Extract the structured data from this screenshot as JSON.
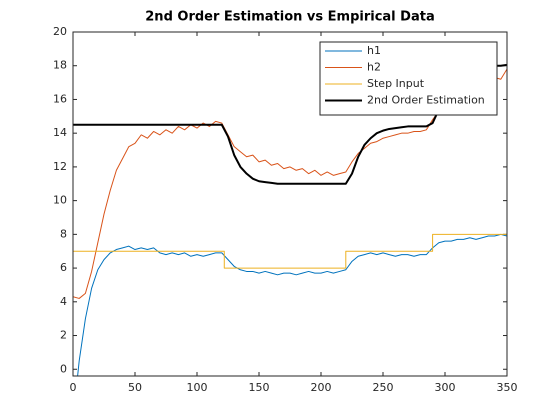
{
  "chart_data": {
    "type": "line",
    "title": "2nd Order Estimation vs Empirical Data",
    "xlim": [
      0,
      350
    ],
    "ylim": [
      -0.4,
      20
    ],
    "xticks": [
      0,
      50,
      100,
      150,
      200,
      250,
      300,
      350
    ],
    "yticks": [
      0,
      2,
      4,
      6,
      8,
      10,
      12,
      14,
      16,
      18,
      20
    ],
    "legend": "upper right",
    "x": [
      0,
      5,
      10,
      15,
      20,
      25,
      30,
      35,
      40,
      45,
      50,
      55,
      60,
      65,
      70,
      75,
      80,
      85,
      90,
      95,
      100,
      105,
      110,
      115,
      120,
      125,
      130,
      135,
      140,
      145,
      150,
      155,
      160,
      165,
      170,
      175,
      180,
      185,
      190,
      195,
      200,
      205,
      210,
      215,
      220,
      225,
      230,
      235,
      240,
      245,
      250,
      255,
      260,
      265,
      270,
      275,
      280,
      285,
      290,
      295,
      300,
      305,
      310,
      315,
      320,
      325,
      330,
      335,
      340,
      345,
      350
    ],
    "series": [
      {
        "name": "h1",
        "color": "#0072bd",
        "width": 1,
        "values": [
          -3,
          0.5,
          3,
          4.8,
          5.9,
          6.5,
          6.9,
          7.1,
          7.2,
          7.3,
          7.1,
          7.2,
          7.1,
          7.2,
          6.9,
          6.8,
          6.9,
          6.8,
          6.9,
          6.7,
          6.8,
          6.7,
          6.8,
          6.9,
          6.9,
          6.5,
          6.1,
          5.9,
          5.8,
          5.8,
          5.7,
          5.8,
          5.7,
          5.6,
          5.7,
          5.7,
          5.6,
          5.7,
          5.8,
          5.7,
          5.7,
          5.8,
          5.7,
          5.8,
          5.9,
          6.4,
          6.7,
          6.8,
          6.9,
          6.8,
          6.9,
          6.8,
          6.7,
          6.8,
          6.8,
          6.7,
          6.8,
          6.8,
          7.2,
          7.5,
          7.6,
          7.6,
          7.7,
          7.7,
          7.8,
          7.7,
          7.8,
          7.9,
          7.9,
          8.0,
          7.9
        ]
      },
      {
        "name": "h2",
        "color": "#d95319",
        "width": 1,
        "values": [
          4.3,
          4.2,
          4.5,
          5.8,
          7.5,
          9.2,
          10.6,
          11.8,
          12.5,
          13.2,
          13.4,
          13.9,
          13.7,
          14.1,
          13.9,
          14.2,
          14.0,
          14.4,
          14.2,
          14.5,
          14.3,
          14.6,
          14.4,
          14.7,
          14.6,
          13.9,
          13.2,
          12.9,
          12.6,
          12.7,
          12.3,
          12.4,
          12.1,
          12.2,
          11.9,
          12.0,
          11.8,
          11.9,
          11.6,
          11.8,
          11.5,
          11.7,
          11.5,
          11.6,
          11.7,
          12.3,
          12.8,
          13.1,
          13.4,
          13.5,
          13.7,
          13.8,
          13.9,
          14.0,
          14.0,
          14.1,
          14.1,
          14.2,
          14.8,
          15.3,
          15.8,
          16.1,
          16.4,
          16.6,
          16.8,
          17.0,
          17.1,
          17.2,
          17.3,
          17.2,
          17.8
        ]
      },
      {
        "name": "Step Input",
        "color": "#edb120",
        "width": 1,
        "x": [
          0,
          122,
          122,
          220,
          220,
          290,
          290,
          350
        ],
        "values": [
          7,
          7,
          6,
          6,
          7,
          7,
          8,
          8
        ]
      },
      {
        "name": "2nd Order Estimation",
        "color": "#000000",
        "width": 2,
        "values": [
          14.5,
          14.5,
          14.5,
          14.5,
          14.5,
          14.5,
          14.5,
          14.5,
          14.5,
          14.5,
          14.5,
          14.5,
          14.5,
          14.5,
          14.5,
          14.5,
          14.5,
          14.5,
          14.5,
          14.5,
          14.5,
          14.5,
          14.5,
          14.5,
          14.5,
          13.8,
          12.7,
          12.0,
          11.6,
          11.3,
          11.15,
          11.1,
          11.05,
          11.0,
          11.0,
          11.0,
          11.0,
          11.0,
          11.0,
          11.0,
          11.0,
          11.0,
          11.0,
          11.0,
          11.0,
          11.6,
          12.6,
          13.3,
          13.7,
          14.0,
          14.15,
          14.25,
          14.3,
          14.35,
          14.4,
          14.4,
          14.4,
          14.4,
          14.6,
          15.4,
          16.2,
          16.8,
          17.2,
          17.5,
          17.7,
          17.8,
          17.9,
          17.95,
          18.0,
          18.0,
          18.05
        ]
      }
    ]
  }
}
